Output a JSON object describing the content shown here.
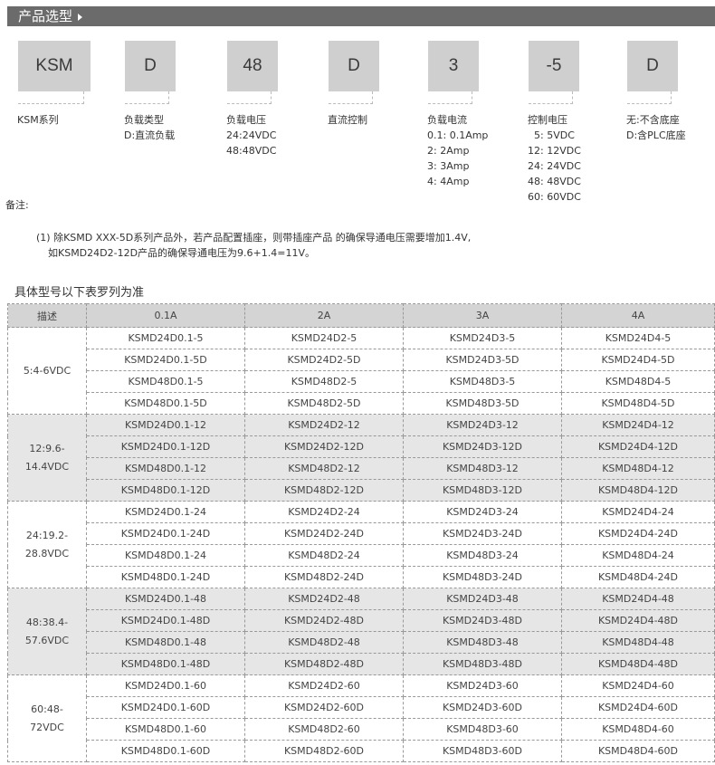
{
  "header": {
    "title": "产品选型"
  },
  "code_boxes": [
    {
      "code": "KSM",
      "label": "KSM系列"
    },
    {
      "code": "D",
      "label": "负载类型\nD:直流负载"
    },
    {
      "code": "48",
      "label": "负载电压\n24:24VDC\n48:48VDC"
    },
    {
      "code": "D",
      "label": "直流控制"
    },
    {
      "code": "3",
      "label": "负载电流\n0.1: 0.1Amp\n2: 2Amp\n3: 3Amp\n4: 4Amp"
    },
    {
      "code": "-5",
      "label": "控制电压\n  5: 5VDC\n12: 12VDC\n24: 24VDC\n48: 48VDC\n60: 60VDC"
    },
    {
      "code": "D",
      "label": "无:不含底座\nD:含PLC底座"
    }
  ],
  "notes": {
    "title": "备注:",
    "line1": "(1) 除KSMD XXX-5D系列产品外，若产品配置插座，则带插座产品 的确保导通电压需要增加1.4V,",
    "line2": "如KSMD24D2-12D产品的确保导通电压为9.6+1.4=11V。"
  },
  "table": {
    "caption": "具体型号以下表罗列为准",
    "headers": [
      "描述",
      "0.1A",
      "2A",
      "3A",
      "4A"
    ],
    "groups": [
      {
        "desc": "5:4-6VDC",
        "rows": [
          [
            "KSMD24D0.1-5",
            "KSMD24D2-5",
            "KSMD24D3-5",
            "KSMD24D4-5"
          ],
          [
            "KSMD24D0.1-5D",
            "KSMD24D2-5D",
            "KSMD24D3-5D",
            "KSMD24D4-5D"
          ],
          [
            "KSMD48D0.1-5",
            "KSMD48D2-5",
            "KSMD48D3-5",
            "KSMD48D4-5"
          ],
          [
            "KSMD48D0.1-5D",
            "KSMD48D2-5D",
            "KSMD48D3-5D",
            "KSMD48D4-5D"
          ]
        ]
      },
      {
        "desc": "12:9.6-\n14.4VDC",
        "rows": [
          [
            "KSMD24D0.1-12",
            "KSMD24D2-12",
            "KSMD24D3-12",
            "KSMD24D4-12"
          ],
          [
            "KSMD24D0.1-12D",
            "KSMD24D2-12D",
            "KSMD24D3-12D",
            "KSMD24D4-12D"
          ],
          [
            "KSMD48D0.1-12",
            "KSMD48D2-12",
            "KSMD48D3-12",
            "KSMD48D4-12"
          ],
          [
            "KSMD48D0.1-12D",
            "KSMD48D2-12D",
            "KSMD48D3-12D",
            "KSMD48D4-12D"
          ]
        ]
      },
      {
        "desc": "24:19.2-\n28.8VDC",
        "rows": [
          [
            "KSMD24D0.1-24",
            "KSMD24D2-24",
            "KSMD24D3-24",
            "KSMD24D4-24"
          ],
          [
            "KSMD24D0.1-24D",
            "KSMD24D2-24D",
            "KSMD24D3-24D",
            "KSMD24D4-24D"
          ],
          [
            "KSMD48D0.1-24",
            "KSMD48D2-24",
            "KSMD48D3-24",
            "KSMD48D4-24"
          ],
          [
            "KSMD48D0.1-24D",
            "KSMD48D2-24D",
            "KSMD48D3-24D",
            "KSMD48D4-24D"
          ]
        ]
      },
      {
        "desc": "48:38.4-\n57.6VDC",
        "rows": [
          [
            "KSMD24D0.1-48",
            "KSMD24D2-48",
            "KSMD24D3-48",
            "KSMD24D4-48"
          ],
          [
            "KSMD24D0.1-48D",
            "KSMD24D2-48D",
            "KSMD24D3-48D",
            "KSMD24D4-48D"
          ],
          [
            "KSMD48D0.1-48",
            "KSMD48D2-48",
            "KSMD48D3-48",
            "KSMD48D4-48"
          ],
          [
            "KSMD48D0.1-48D",
            "KSMD48D2-48D",
            "KSMD48D3-48D",
            "KSMD48D4-48D"
          ]
        ]
      },
      {
        "desc": "60:48-\n72VDC",
        "rows": [
          [
            "KSMD24D0.1-60",
            "KSMD24D2-60",
            "KSMD24D3-60",
            "KSMD24D4-60"
          ],
          [
            "KSMD24D0.1-60D",
            "KSMD24D2-60D",
            "KSMD24D3-60D",
            "KSMD24D4-60D"
          ],
          [
            "KSMD48D0.1-60",
            "KSMD48D2-60",
            "KSMD48D3-60",
            "KSMD48D4-60"
          ],
          [
            "KSMD48D0.1-60D",
            "KSMD48D2-60D",
            "KSMD48D3-60D",
            "KSMD48D4-60D"
          ]
        ]
      }
    ]
  }
}
